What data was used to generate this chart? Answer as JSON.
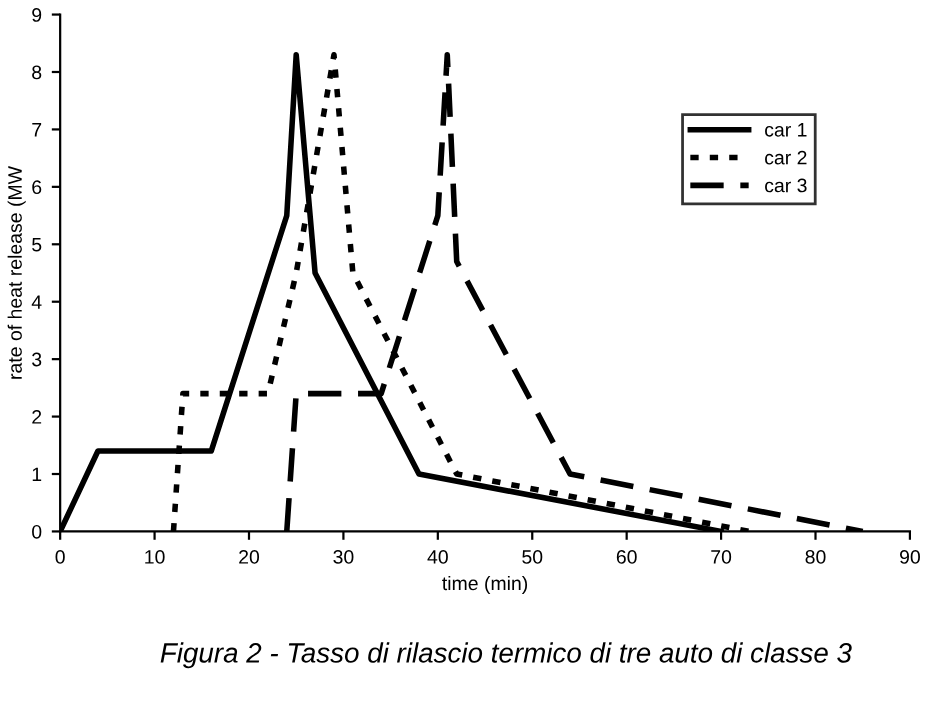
{
  "chart_data": {
    "type": "line",
    "title": "Figura 2 - Tasso di rilascio termico di tre auto di classe 3",
    "xlabel": "time (min)",
    "ylabel": "rate of heat release (MW",
    "series": [
      {
        "name": "car 1",
        "color": "#000000",
        "line_style": "solid",
        "x": [
          0,
          4,
          16,
          24,
          25,
          27,
          38,
          70
        ],
        "values": [
          0,
          1.4,
          1.4,
          5.5,
          8.3,
          4.5,
          1.0,
          0
        ]
      },
      {
        "name": "car 2",
        "color": "#000000",
        "line_style": "dotted",
        "x": [
          12,
          13,
          22,
          25,
          29,
          31,
          42,
          73
        ],
        "values": [
          0,
          2.4,
          2.4,
          4.5,
          8.3,
          4.5,
          1.0,
          0
        ]
      },
      {
        "name": "car 3",
        "color": "#000000",
        "line_style": "dashed",
        "x": [
          24,
          25,
          34,
          40,
          41,
          42,
          54,
          85
        ],
        "values": [
          0,
          2.4,
          2.4,
          5.5,
          8.3,
          4.7,
          1.0,
          0
        ]
      }
    ],
    "xlim": [
      0,
      90
    ],
    "xticks": [
      0,
      10,
      20,
      30,
      40,
      50,
      60,
      70,
      80,
      90
    ],
    "ylim": [
      0,
      9
    ],
    "yticks": [
      0,
      1,
      2,
      3,
      4,
      5,
      6,
      7,
      8,
      9
    ],
    "grid": false,
    "legend": "right",
    "marker": "none"
  }
}
